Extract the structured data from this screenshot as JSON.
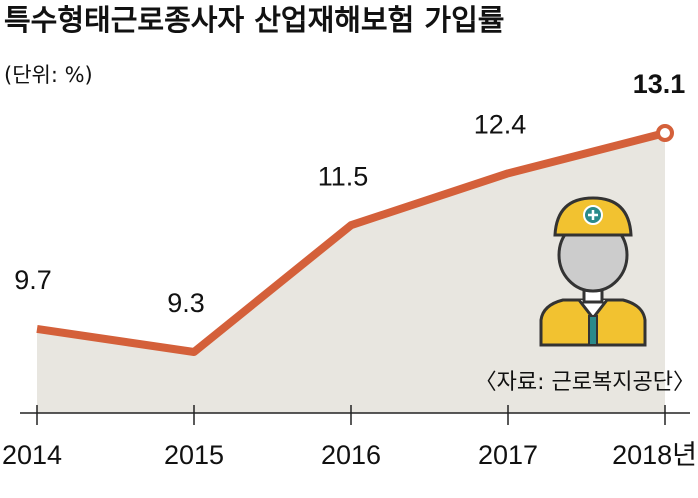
{
  "chart_data": {
    "type": "line",
    "title": "특수형태근로종사자 산업재해보험 가입률",
    "unit": "(단위: %)",
    "source": "〈자료: 근로복지공단〉",
    "categories": [
      "2014",
      "2015",
      "2016",
      "2017",
      "2018년"
    ],
    "values": [
      9.7,
      9.3,
      11.5,
      12.4,
      13.1
    ],
    "color": "#d4603a"
  }
}
